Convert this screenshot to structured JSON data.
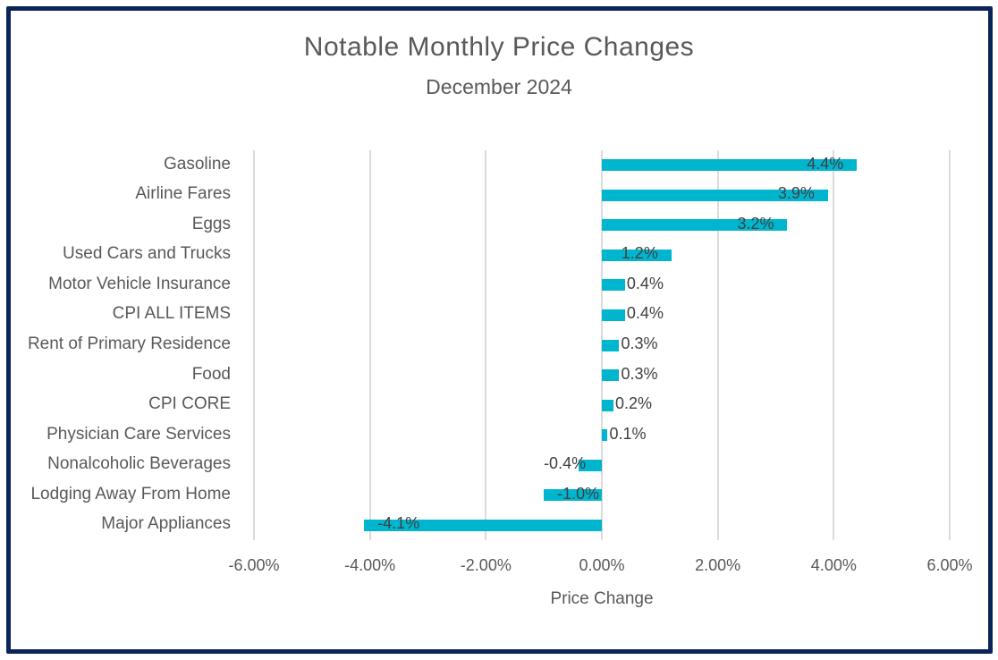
{
  "frame": {
    "border_color": "#0B2559",
    "background_color": "#FFFFFF"
  },
  "title": "Notable Monthly Price Changes",
  "subtitle": "December 2024",
  "chart_data": {
    "type": "bar",
    "orientation": "horizontal",
    "title": "Notable Monthly Price Changes",
    "subtitle": "December 2024",
    "xlabel": "Price Change",
    "ylabel": "",
    "categories": [
      "Gasoline",
      "Airline Fares",
      "Eggs",
      "Used Cars and Trucks",
      "Motor Vehicle Insurance",
      "CPI ALL ITEMS",
      "Rent of Primary Residence",
      "Food",
      "CPI CORE",
      "Physician Care Services",
      "Nonalcoholic Beverages",
      "Lodging Away From Home",
      "Major Appliances"
    ],
    "values": [
      4.4,
      3.9,
      3.2,
      1.2,
      0.4,
      0.4,
      0.3,
      0.3,
      0.2,
      0.1,
      -0.4,
      -1.0,
      -4.1
    ],
    "data_labels": [
      "4.4%",
      "3.9%",
      "3.2%",
      "1.2%",
      "0.4%",
      "0.4%",
      "0.3%",
      "0.3%",
      "0.2%",
      "0.1%",
      "-0.4%",
      "-1.0%",
      "-4.1%"
    ],
    "xlim": [
      -6,
      6
    ],
    "x_ticks": [
      {
        "value": -6,
        "label": "-6.00%"
      },
      {
        "value": -4,
        "label": "-4.00%"
      },
      {
        "value": -2,
        "label": "-2.00%"
      },
      {
        "value": 0,
        "label": "0.00%"
      },
      {
        "value": 2,
        "label": "2.00%"
      },
      {
        "value": 4,
        "label": "4.00%"
      },
      {
        "value": 6,
        "label": "6.00%"
      }
    ],
    "grid": "vertical",
    "legend": "none",
    "bar_color": "#00B6CF",
    "gridline_color": "#DBDBDB",
    "data_label_color": "#404040",
    "axis_text_color": "#595959"
  }
}
